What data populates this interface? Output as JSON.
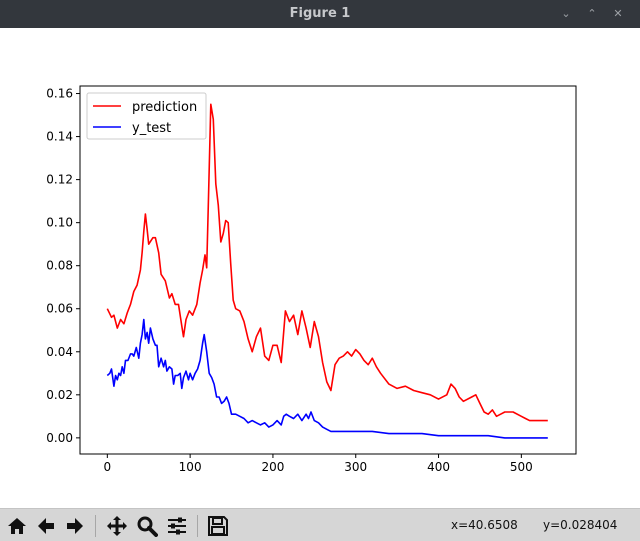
{
  "window": {
    "title": "Figure 1"
  },
  "toolbar": {
    "buttons": [
      {
        "name": "home",
        "icon": "home-icon"
      },
      {
        "name": "back",
        "icon": "arrow-left-icon"
      },
      {
        "name": "forward",
        "icon": "arrow-right-icon"
      },
      {
        "name": "pan",
        "icon": "move-icon"
      },
      {
        "name": "zoom",
        "icon": "magnifier-icon"
      },
      {
        "name": "subplots",
        "icon": "sliders-icon"
      },
      {
        "name": "save",
        "icon": "save-icon"
      }
    ],
    "x_readout": "x=40.6508",
    "y_readout": "y=0.028404"
  },
  "colors": {
    "prediction": "#ff0000",
    "y_test": "#0000ff",
    "titlebar": "#33373d"
  },
  "chart_data": {
    "type": "line",
    "title": "",
    "xlabel": "",
    "ylabel": "",
    "xlim": [
      -33,
      566
    ],
    "ylim": [
      -0.0075,
      0.1635
    ],
    "xticks": [
      0,
      100,
      200,
      300,
      400,
      500
    ],
    "yticks": [
      0.0,
      0.02,
      0.04,
      0.06,
      0.08,
      0.1,
      0.12,
      0.14,
      0.16
    ],
    "ytick_labels": [
      "0.00",
      "0.02",
      "0.04",
      "0.06",
      "0.08",
      "0.10",
      "0.12",
      "0.14",
      "0.16"
    ],
    "legend": {
      "position": "upper-left",
      "entries": [
        "prediction",
        "y_test"
      ]
    },
    "series": [
      {
        "name": "prediction",
        "color": "#ff0000",
        "x": [
          0,
          5,
          8,
          12,
          16,
          20,
          24,
          28,
          32,
          36,
          40,
          42,
          44,
          46,
          48,
          50,
          55,
          58,
          62,
          65,
          70,
          75,
          78,
          82,
          86,
          90,
          92,
          95,
          99,
          103,
          108,
          112,
          115,
          118,
          120,
          122,
          125,
          128,
          131,
          134,
          137,
          140,
          143,
          146,
          149,
          152,
          155,
          160,
          165,
          170,
          175,
          180,
          185,
          190,
          195,
          200,
          205,
          210,
          215,
          220,
          225,
          230,
          235,
          240,
          245,
          250,
          255,
          260,
          265,
          270,
          275,
          280,
          285,
          290,
          295,
          300,
          305,
          310,
          315,
          320,
          325,
          330,
          340,
          350,
          360,
          370,
          380,
          390,
          400,
          410,
          415,
          420,
          425,
          430,
          440,
          445,
          450,
          455,
          460,
          465,
          470,
          475,
          480,
          490,
          500,
          505,
          510,
          520,
          530,
          532
        ],
        "y": [
          0.06,
          0.056,
          0.057,
          0.051,
          0.055,
          0.053,
          0.058,
          0.062,
          0.068,
          0.071,
          0.078,
          0.086,
          0.096,
          0.104,
          0.097,
          0.09,
          0.093,
          0.093,
          0.086,
          0.076,
          0.073,
          0.065,
          0.067,
          0.062,
          0.062,
          0.052,
          0.047,
          0.055,
          0.059,
          0.057,
          0.062,
          0.072,
          0.078,
          0.085,
          0.079,
          0.108,
          0.155,
          0.148,
          0.118,
          0.108,
          0.091,
          0.095,
          0.101,
          0.1,
          0.081,
          0.064,
          0.06,
          0.059,
          0.054,
          0.046,
          0.04,
          0.047,
          0.051,
          0.038,
          0.036,
          0.043,
          0.043,
          0.035,
          0.059,
          0.054,
          0.057,
          0.048,
          0.059,
          0.051,
          0.042,
          0.054,
          0.047,
          0.035,
          0.026,
          0.022,
          0.034,
          0.037,
          0.038,
          0.04,
          0.038,
          0.041,
          0.039,
          0.036,
          0.034,
          0.037,
          0.033,
          0.03,
          0.025,
          0.023,
          0.024,
          0.022,
          0.021,
          0.02,
          0.018,
          0.02,
          0.025,
          0.023,
          0.019,
          0.017,
          0.019,
          0.02,
          0.016,
          0.012,
          0.011,
          0.013,
          0.01,
          0.011,
          0.012,
          0.012,
          0.01,
          0.009,
          0.008,
          0.008,
          0.008,
          0.008
        ]
      },
      {
        "name": "y_test",
        "color": "#0000ff",
        "x": [
          0,
          3,
          5,
          8,
          10,
          12,
          14,
          16,
          18,
          20,
          22,
          25,
          28,
          30,
          32,
          35,
          38,
          40,
          42,
          44,
          46,
          48,
          50,
          52,
          55,
          58,
          60,
          62,
          65,
          68,
          70,
          72,
          75,
          78,
          80,
          82,
          85,
          88,
          90,
          92,
          95,
          98,
          100,
          103,
          106,
          109,
          112,
          115,
          117,
          120,
          123,
          126,
          129,
          132,
          135,
          138,
          141,
          144,
          147,
          150,
          155,
          160,
          165,
          170,
          175,
          180,
          185,
          190,
          195,
          200,
          205,
          210,
          213,
          216,
          220,
          225,
          230,
          235,
          240,
          243,
          246,
          250,
          255,
          260,
          265,
          270,
          280,
          290,
          300,
          320,
          340,
          360,
          380,
          400,
          420,
          440,
          460,
          480,
          500,
          520,
          532
        ],
        "y": [
          0.029,
          0.03,
          0.032,
          0.024,
          0.029,
          0.027,
          0.03,
          0.029,
          0.033,
          0.03,
          0.036,
          0.036,
          0.039,
          0.039,
          0.038,
          0.042,
          0.037,
          0.044,
          0.048,
          0.055,
          0.046,
          0.049,
          0.044,
          0.051,
          0.046,
          0.043,
          0.043,
          0.033,
          0.037,
          0.033,
          0.036,
          0.031,
          0.033,
          0.032,
          0.025,
          0.029,
          0.029,
          0.03,
          0.023,
          0.028,
          0.031,
          0.027,
          0.03,
          0.027,
          0.03,
          0.032,
          0.036,
          0.044,
          0.048,
          0.04,
          0.03,
          0.028,
          0.025,
          0.019,
          0.019,
          0.016,
          0.017,
          0.019,
          0.016,
          0.011,
          0.011,
          0.01,
          0.009,
          0.007,
          0.008,
          0.007,
          0.006,
          0.007,
          0.005,
          0.006,
          0.008,
          0.006,
          0.01,
          0.011,
          0.01,
          0.009,
          0.011,
          0.008,
          0.011,
          0.009,
          0.012,
          0.008,
          0.007,
          0.005,
          0.004,
          0.003,
          0.003,
          0.003,
          0.003,
          0.003,
          0.002,
          0.002,
          0.002,
          0.001,
          0.001,
          0.001,
          0.001,
          0.0,
          0.0,
          0.0,
          0.0
        ]
      }
    ]
  }
}
